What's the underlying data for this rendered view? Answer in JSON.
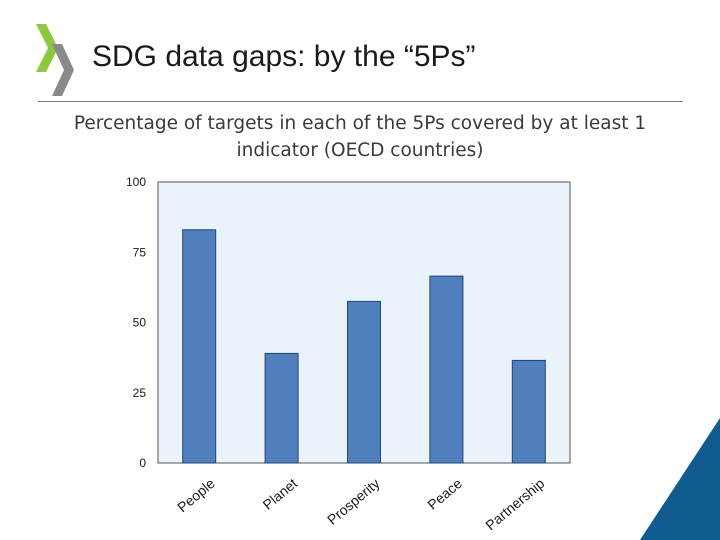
{
  "slide": {
    "title": "SDG data gaps: by the “5Ps”",
    "subtitle": "Percentage of targets in each of the 5Ps covered by at least 1 indicator (OECD countries)"
  },
  "colors": {
    "bar": "#4f7fbd",
    "bar_stroke": "#23466e",
    "plot_bg": "#eaf2fb",
    "logo_green": "#8dc63f",
    "logo_gray": "#8a8a8a",
    "corner_blue": "#0f5a8f"
  },
  "icons": {
    "logo": "oecd-chevrons-logo",
    "corner": "blue-corner-decoration"
  },
  "chart_data": {
    "type": "bar",
    "title": "",
    "xlabel": "",
    "ylabel": "",
    "categories": [
      "People",
      "Planet",
      "Prosperity",
      "Peace",
      "Partnership"
    ],
    "values": [
      83,
      39,
      57.5,
      66.5,
      36.5
    ],
    "ylim": [
      0,
      100
    ],
    "yticks": [
      "0",
      "25",
      "50",
      "75",
      "100"
    ],
    "grid": false,
    "legend": "none"
  }
}
